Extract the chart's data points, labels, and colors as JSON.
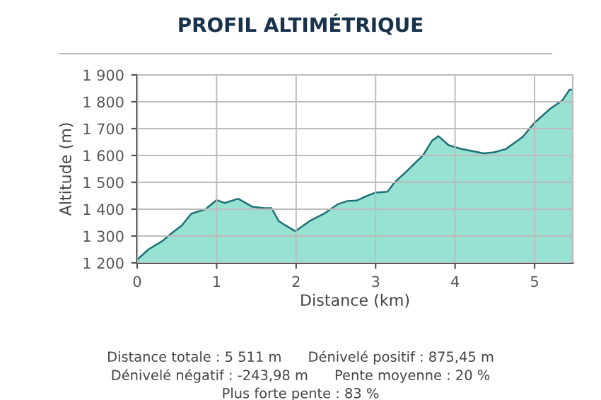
{
  "chart_data": {
    "type": "area",
    "title": "PROFIL ALTIMÉTRIQUE",
    "xlabel": "Distance (km)",
    "ylabel": "Altitude (m)",
    "x": [
      0,
      0.14,
      0.32,
      0.44,
      0.56,
      0.68,
      0.86,
      1.0,
      1.1,
      1.27,
      1.45,
      1.6,
      1.69,
      1.78,
      1.87,
      1.99,
      2.17,
      2.35,
      2.52,
      2.64,
      2.76,
      2.88,
      3.0,
      3.15,
      3.24,
      3.39,
      3.6,
      3.71,
      3.79,
      3.92,
      4.07,
      4.36,
      4.49,
      4.64,
      4.85,
      5.0,
      5.2,
      5.35,
      5.44,
      5.48
    ],
    "series": [
      {
        "color": "#98e2d4",
        "values": [
          1212,
          1250,
          1282,
          1312,
          1339,
          1383,
          1400,
          1434,
          1423,
          1439,
          1409,
          1404,
          1404,
          1356,
          1339,
          1318,
          1356,
          1383,
          1418,
          1430,
          1432,
          1448,
          1462,
          1465,
          1500,
          1541,
          1602,
          1655,
          1672,
          1638,
          1625,
          1608,
          1612,
          1624,
          1669,
          1722,
          1775,
          1805,
          1845,
          1845
        ]
      }
    ],
    "xlim": [
      0,
      5.48
    ],
    "ylim": [
      1200,
      1900
    ],
    "xticks": [
      0,
      1,
      2,
      3,
      4,
      5
    ],
    "yticks": [
      {
        "value": 1200,
        "label": "1 200"
      },
      {
        "value": 1300,
        "label": "1 300"
      },
      {
        "value": 1400,
        "label": "1 400"
      },
      {
        "value": 1500,
        "label": "1 500"
      },
      {
        "value": 1600,
        "label": "1 600"
      },
      {
        "value": 1700,
        "label": "1 700"
      },
      {
        "value": 1800,
        "label": "1 800"
      },
      {
        "value": 1900,
        "label": "1 900"
      }
    ],
    "grid": true,
    "legend": false,
    "annotations": [
      "Distance totale : 5 511 m      Dénivelé positif : 875,45 m",
      "Dénivelé négatif : -243,98 m      Pente moyenne : 20 %",
      "Plus forte pente : 83 %"
    ]
  }
}
